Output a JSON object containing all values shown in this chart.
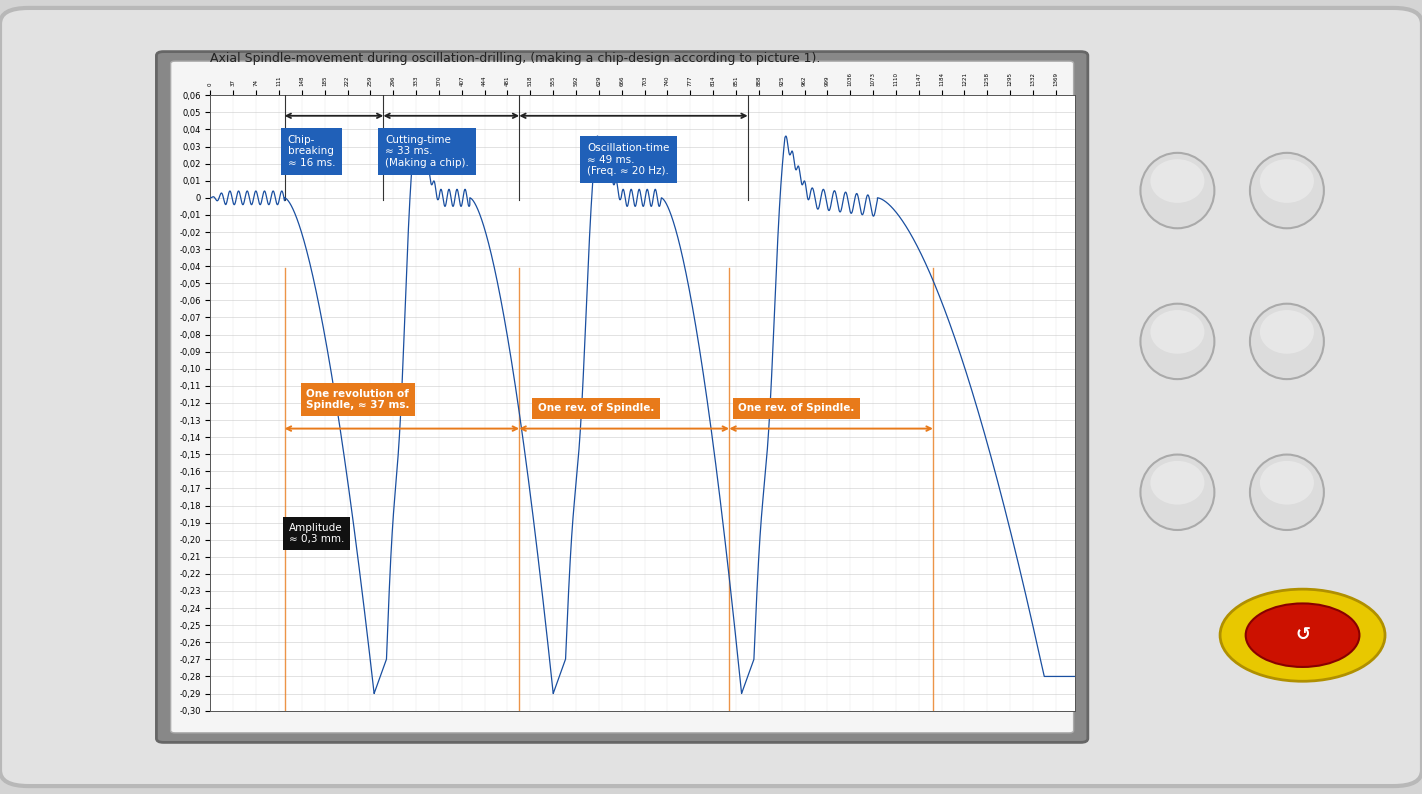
{
  "title": "Axial Spindle-movement during oscillation-drilling, (making a chip-design according to picture 1).",
  "bg_outer": "#d8d8d8",
  "bg_device": "#e0e0e0",
  "bg_screen": "#f0f0f0",
  "bg_chart": "#ffffff",
  "line_color": "#1a4fa0",
  "orange_color": "#e87a1a",
  "blue_box": "#2060b8",
  "amplitude_box": "#111111",
  "ylim_min": -0.3,
  "ylim_max": 0.06,
  "ytick_step": 0.01,
  "annotations": {
    "chip_breaking": "Chip-\nbreaking\n≈ 16 ms.",
    "cutting_time": "Cutting-time\n≈ 33 ms.\n(Making a chip).",
    "oscillation_time": "Oscillation-time\n≈ 49 ms.\n(Freq. ≈ 20 Hz).",
    "rev1": "One revolution of\nSpindle, ≈ 37 ms.",
    "rev2": "One rev. of Spindle.",
    "rev3": "One rev. of Spindle.",
    "amplitude": "Amplitude\n≈ 0,3 mm."
  }
}
